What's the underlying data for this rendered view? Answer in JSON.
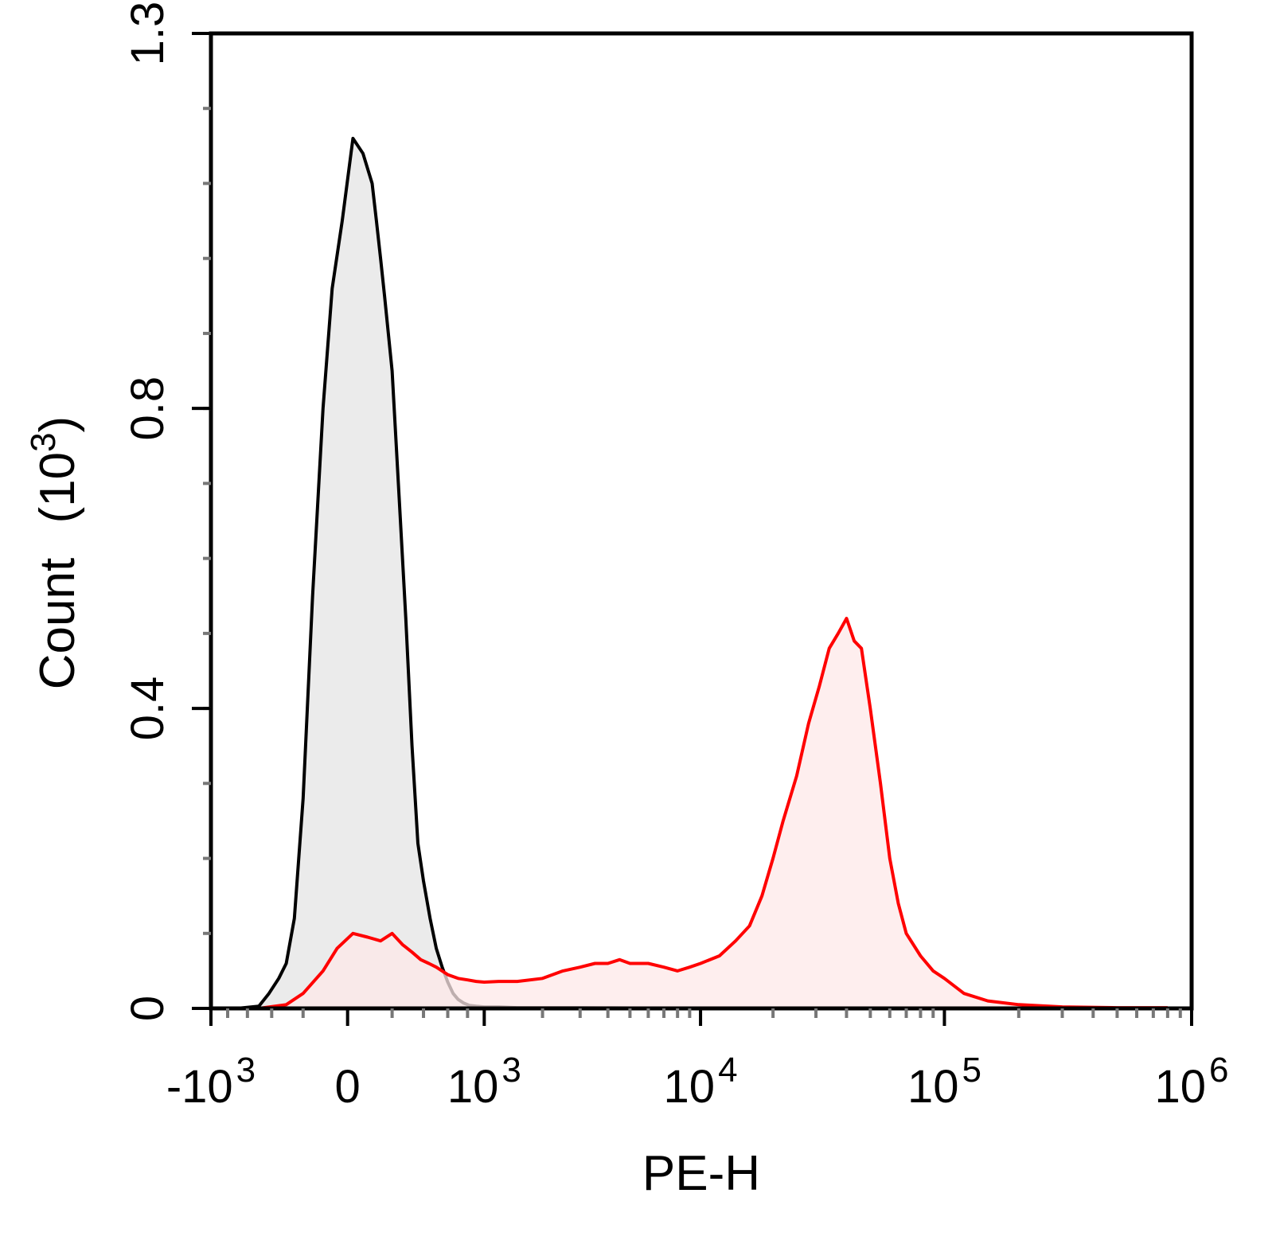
{
  "chart_data": {
    "type": "area",
    "xlabel": "PE-H",
    "ylabel": "Count",
    "ylabel_unit_base": "10",
    "ylabel_unit_exp": "3",
    "x_scale": "biexponential",
    "ylim": [
      0,
      1.3
    ],
    "y_ticks": [
      {
        "value": 0,
        "label": "0"
      },
      {
        "value": 0.4,
        "label": "0.4"
      },
      {
        "value": 0.8,
        "label": "0.8"
      },
      {
        "value": 1.3,
        "label": "1.3"
      }
    ],
    "x_ticks": [
      {
        "value": -1000,
        "prefix": "-",
        "base": "10",
        "exp": "3"
      },
      {
        "value": 0,
        "prefix": "",
        "base": "0",
        "exp": ""
      },
      {
        "value": 1000,
        "prefix": "",
        "base": "10",
        "exp": "3"
      },
      {
        "value": 10000,
        "prefix": "",
        "base": "10",
        "exp": "4"
      },
      {
        "value": 100000,
        "prefix": "",
        "base": "10",
        "exp": "5"
      },
      {
        "value": 1000000,
        "prefix": "",
        "base": "10",
        "exp": "6"
      }
    ],
    "grid": false,
    "legend": "none",
    "series": [
      {
        "color": "#000000",
        "fill": "#ebebeb",
        "x": [
          -700,
          -500,
          -420,
          -350,
          -300,
          -250,
          -200,
          -150,
          -100,
          -60,
          -20,
          20,
          60,
          100,
          120,
          140,
          160,
          200,
          240,
          280,
          320,
          360,
          400,
          450,
          500,
          550,
          600,
          650,
          700,
          760,
          820,
          900,
          1000,
          1200,
          1500,
          2000,
          3000,
          5000,
          8000,
          12000
        ],
        "values": [
          0,
          0.003,
          0.02,
          0.04,
          0.06,
          0.12,
          0.28,
          0.55,
          0.8,
          0.96,
          1.05,
          1.16,
          1.14,
          1.1,
          1.05,
          1.0,
          0.95,
          0.85,
          0.68,
          0.52,
          0.35,
          0.22,
          0.17,
          0.12,
          0.08,
          0.055,
          0.035,
          0.02,
          0.012,
          0.007,
          0.004,
          0.003,
          0.002,
          0.002,
          0.001,
          0.001,
          0.001,
          0.0005,
          0.0005,
          0.0005
        ]
      },
      {
        "color": "#ff0000",
        "fill": "#fde8e8",
        "x": [
          -500,
          -300,
          -200,
          -100,
          -40,
          20,
          80,
          140,
          200,
          260,
          320,
          380,
          440,
          500,
          600,
          700,
          800,
          900,
          1000,
          1200,
          1500,
          2000,
          2500,
          3000,
          3500,
          4000,
          4500,
          5000,
          6000,
          7000,
          8000,
          9000,
          10000,
          12000,
          14000,
          16000,
          18000,
          20000,
          22000,
          25000,
          28000,
          31000,
          34000,
          37000,
          40000,
          43000,
          46000,
          50000,
          55000,
          60000,
          65000,
          70000,
          80000,
          90000,
          100000,
          120000,
          150000,
          200000,
          300000,
          500000,
          800000
        ],
        "values": [
          0,
          0.005,
          0.02,
          0.05,
          0.08,
          0.1,
          0.095,
          0.09,
          0.1,
          0.085,
          0.075,
          0.065,
          0.06,
          0.055,
          0.045,
          0.04,
          0.038,
          0.036,
          0.035,
          0.036,
          0.036,
          0.04,
          0.05,
          0.055,
          0.06,
          0.06,
          0.065,
          0.06,
          0.06,
          0.055,
          0.05,
          0.055,
          0.06,
          0.07,
          0.09,
          0.11,
          0.15,
          0.2,
          0.25,
          0.31,
          0.38,
          0.43,
          0.48,
          0.5,
          0.52,
          0.49,
          0.48,
          0.4,
          0.3,
          0.2,
          0.14,
          0.1,
          0.07,
          0.05,
          0.04,
          0.02,
          0.01,
          0.005,
          0.002,
          0.001,
          0.001
        ]
      }
    ]
  }
}
